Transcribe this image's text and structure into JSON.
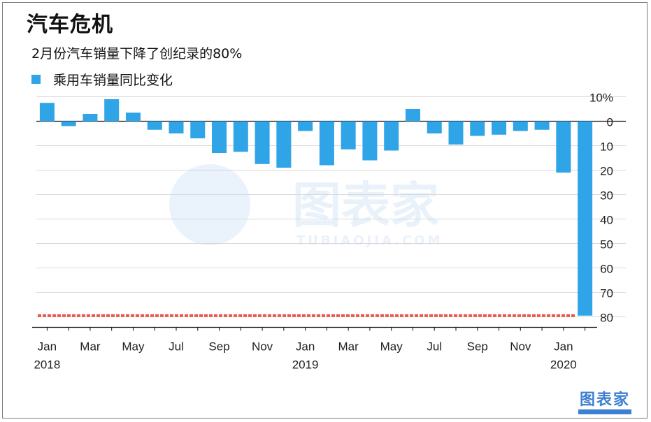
{
  "title": "汽车危机",
  "subtitle": "2月份汽车销量下降了创纪录的80%",
  "legend": {
    "label": "乘用车销量同比变化",
    "color": "#2fa4e7"
  },
  "watermark": {
    "name": "图表家",
    "domain": "TUBIAOJIA.COM"
  },
  "brand": "图表家",
  "chart_data": {
    "type": "bar",
    "series": [
      {
        "name": "乘用车销量同比变化",
        "color": "#2fa4e7",
        "values": [
          7.5,
          -2,
          3,
          9,
          3.5,
          -3.5,
          -5,
          -7,
          -13,
          -12.5,
          -17.5,
          -19,
          -4,
          -18,
          -11.5,
          -16,
          -12,
          5,
          -5,
          -9.5,
          -6,
          -5.5,
          -4,
          -3.5,
          -21,
          -79.5
        ]
      }
    ],
    "ylim": [
      -80,
      10
    ],
    "yticks": [
      10,
      0,
      -10,
      -20,
      -30,
      -40,
      -50,
      -60,
      -70,
      -80
    ],
    "ytick_labels": [
      "10%",
      "0",
      "10",
      "20",
      "30",
      "40",
      "50",
      "60",
      "70",
      "80"
    ],
    "xtick_labels": [
      {
        "index": 0,
        "month": "Jan",
        "year": "2018"
      },
      {
        "index": 2,
        "month": "Mar",
        "year": ""
      },
      {
        "index": 4,
        "month": "May",
        "year": ""
      },
      {
        "index": 6,
        "month": "Jul",
        "year": ""
      },
      {
        "index": 8,
        "month": "Sep",
        "year": ""
      },
      {
        "index": 10,
        "month": "Nov",
        "year": ""
      },
      {
        "index": 12,
        "month": "Jan",
        "year": "2019"
      },
      {
        "index": 14,
        "month": "Mar",
        "year": ""
      },
      {
        "index": 16,
        "month": "May",
        "year": ""
      },
      {
        "index": 18,
        "month": "Jul",
        "year": ""
      },
      {
        "index": 20,
        "month": "Sep",
        "year": ""
      },
      {
        "index": 22,
        "month": "Nov",
        "year": ""
      },
      {
        "index": 24,
        "month": "Jan",
        "year": "2020"
      }
    ],
    "reference_line": {
      "value": -79.5,
      "color": "#e8564a",
      "style": "dashed"
    },
    "grid": true,
    "ylabel_position": "right"
  }
}
